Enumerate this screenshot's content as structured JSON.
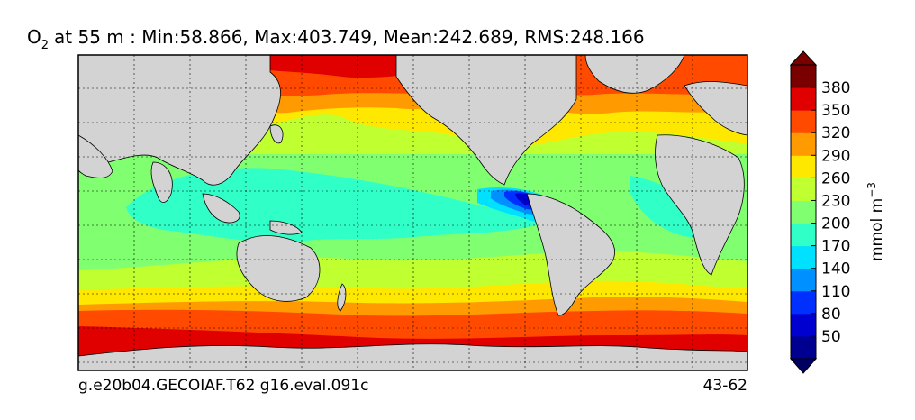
{
  "title": {
    "species": "O",
    "species_subscript": "2",
    "text": "at 55 m : Min:58.866, Max:403.749, Mean:242.689, RMS:248.166"
  },
  "footer": {
    "left": "g.e20b04.GECOIAF.T62 g16.eval.091c",
    "right": "43-62"
  },
  "colorbar": {
    "unit_label": "mmol m",
    "unit_exponent": "−3",
    "tick_labels": [
      "50",
      "80",
      "110",
      "140",
      "170",
      "200",
      "230",
      "260",
      "290",
      "320",
      "350",
      "380"
    ],
    "under_color": "#000060",
    "over_color": "#7a0000",
    "colors": [
      "#000090",
      "#0000d0",
      "#0030ff",
      "#0090ff",
      "#00e0ff",
      "#30ffc8",
      "#80ff70",
      "#c0ff30",
      "#ffe800",
      "#ff9a00",
      "#ff4a00",
      "#e00000",
      "#7a0000"
    ]
  },
  "map": {
    "land_color": "#d3d3d3",
    "grid": true,
    "ocean_colors": {
      "c170": "#30ffc8",
      "c200": "#80ff70",
      "c230": "#c0ff30",
      "c260": "#ffe800",
      "c290": "#ff9a00",
      "c320": "#ff4a00",
      "c350": "#e00000",
      "c380": "#7a0000",
      "c140": "#00e0ff",
      "c110": "#0090ff",
      "c80": "#0030ff",
      "c50": "#0000d0"
    }
  }
}
